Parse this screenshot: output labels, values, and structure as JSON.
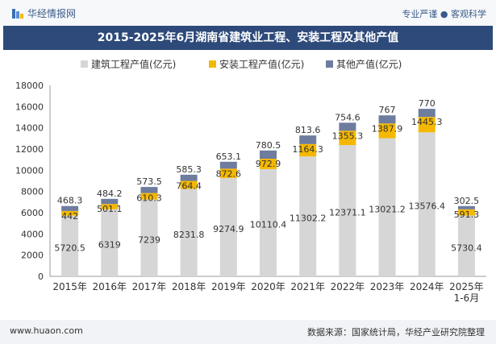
{
  "header": {
    "brand": "华经情报网",
    "tagline": "专业严谨 ● 客观科学"
  },
  "footer": {
    "site": "www.huaon.com",
    "source": "数据来源：国家统计局，华经产业研究院整理"
  },
  "colors": {
    "construction": "#d6d6d6",
    "installation": "#f5b800",
    "other": "#6e7c9e",
    "title_bg": "#2d4a7a"
  },
  "chart_data": {
    "type": "bar",
    "stacked": true,
    "title": "2015-2025年6月湖南省建筑业工程、安装工程及其他产值",
    "categories": [
      "2015年",
      "2016年",
      "2017年",
      "2018年",
      "2019年",
      "2020年",
      "2021年",
      "2022年",
      "2023年",
      "2024年",
      "2025年\n1-6月"
    ],
    "series": [
      {
        "name": "建筑工程产值(亿元)",
        "values": [
          5720.5,
          6319,
          7239,
          8231.8,
          9274.9,
          10110.4,
          11302.2,
          12371.1,
          13021.2,
          13576.4,
          5730.4
        ]
      },
      {
        "name": "安装工程产值(亿元)",
        "values": [
          442,
          501.1,
          610.3,
          764.4,
          872.6,
          972.9,
          1164.3,
          1355.3,
          1387.9,
          1445.3,
          591.3
        ]
      },
      {
        "name": "其他产值(亿元)",
        "values": [
          468.3,
          484.2,
          573.5,
          585.3,
          653.1,
          780.5,
          813.6,
          754.6,
          767,
          770,
          302.5
        ]
      }
    ],
    "ylim": [
      0,
      18000
    ],
    "yticks": [
      0,
      2000,
      4000,
      6000,
      8000,
      10000,
      12000,
      14000,
      16000,
      18000
    ],
    "legend_position": "top-center",
    "grid": false
  }
}
